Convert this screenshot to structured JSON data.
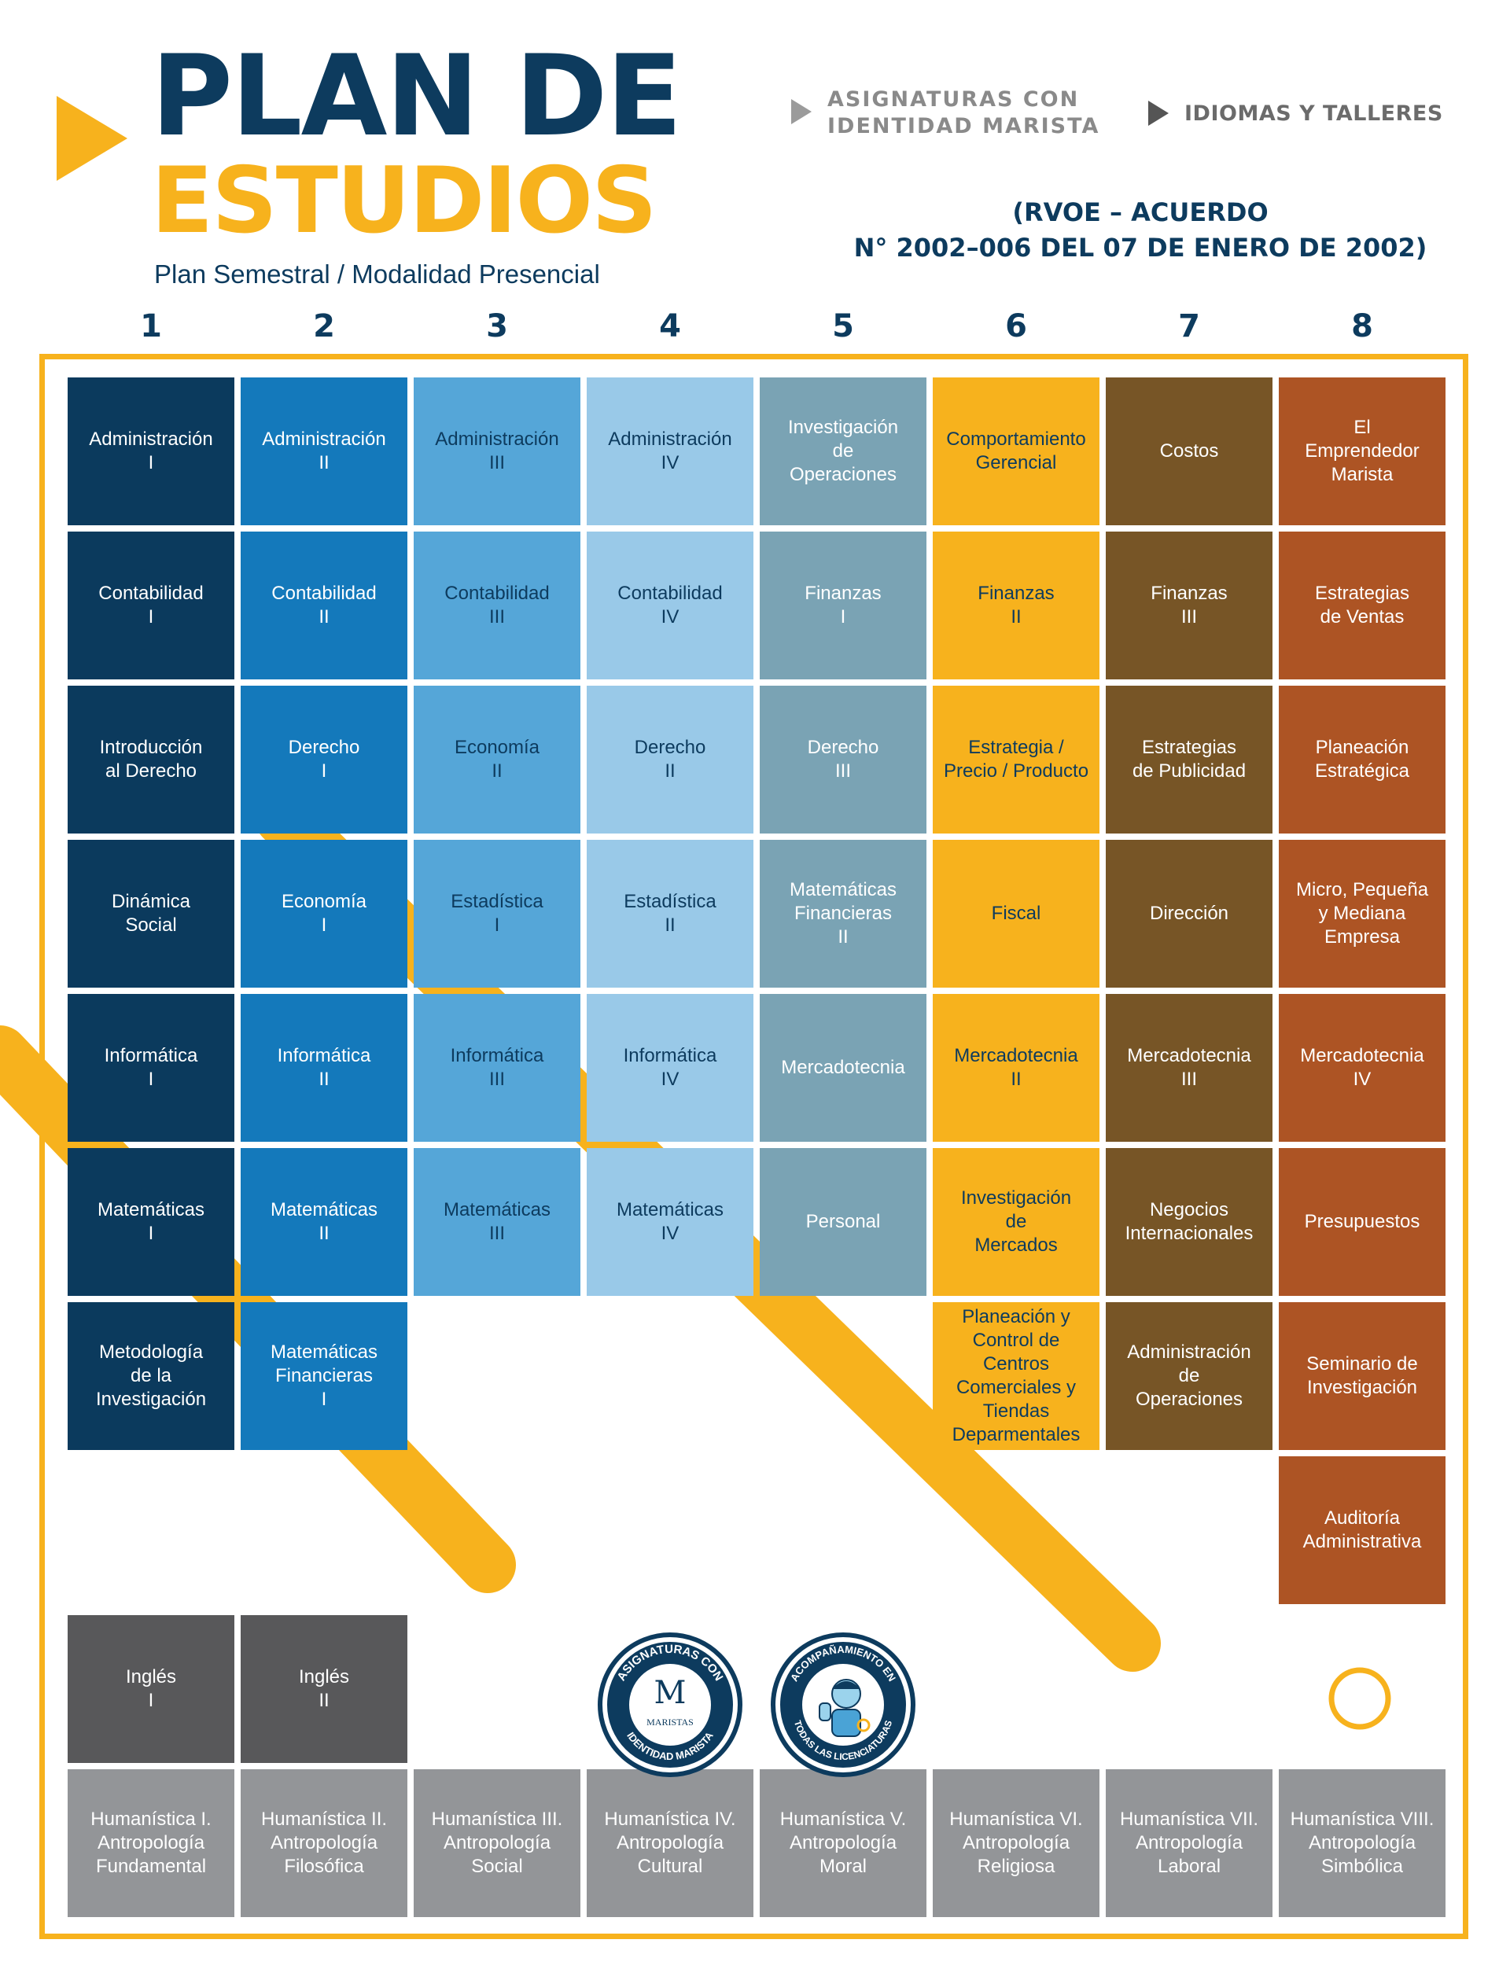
{
  "header": {
    "title_line1": "PLAN DE",
    "title_line2": "ESTUDIOS",
    "subtitle": "Plan Semestral / Modalidad Presencial",
    "rvoe_line1": "(RVOE – ACUERDO",
    "rvoe_line2": "N° 2002–006 DEL 07 DE ENERO DE 2002)"
  },
  "legend": {
    "marista": "ASIGNATURAS CON IDENTIDAD MARISTA",
    "idiomas": "IDIOMAS Y TALLERES"
  },
  "semesters": [
    "1",
    "2",
    "3",
    "4",
    "5",
    "6",
    "7",
    "8"
  ],
  "columns": [
    {
      "color": "#0b3a5d",
      "text": "#ffffff",
      "subjects": [
        "Administración\nI",
        "Contabilidad\nI",
        "Introducción\nal Derecho",
        "Dinámica\nSocial",
        "Informática\nI",
        "Matemáticas\nI",
        "Metodología\nde la\nInvestigación"
      ]
    },
    {
      "color": "#1479bb",
      "text": "#ffffff",
      "subjects": [
        "Administración\nII",
        "Contabilidad\nII",
        "Derecho\nI",
        "Economía\nI",
        "Informática\nII",
        "Matemáticas\nII",
        "Matemáticas\nFinancieras\nI"
      ]
    },
    {
      "color": "#55a6d8",
      "text": "#0d3b5e",
      "subjects": [
        "Administración\nIII",
        "Contabilidad\nIII",
        "Economía\nII",
        "Estadística\nI",
        "Informática\nIII",
        "Matemáticas\nIII"
      ]
    },
    {
      "color": "#99c9e8",
      "text": "#0d3b5e",
      "subjects": [
        "Administración\nIV",
        "Contabilidad\nIV",
        "Derecho\nII",
        "Estadística\nII",
        "Informática\nIV",
        "Matemáticas\nIV"
      ]
    },
    {
      "color": "#7aa3b4",
      "text": "#ffffff",
      "subjects": [
        "Investigación\nde\nOperaciones",
        "Finanzas\nI",
        "Derecho\nIII",
        "Matemáticas\nFinancieras\nII",
        "Mercadotecnia",
        "Personal"
      ]
    },
    {
      "color": "#f7b21d",
      "text": "#0d3b5e",
      "subjects": [
        "Comportamiento\nGerencial",
        "Finanzas\nII",
        "Estrategia /\nPrecio / Producto",
        "Fiscal",
        "Mercadotecnia\nII",
        "Investigación\nde\nMercados",
        "Planeación y\nControl de\nCentros\nComerciales y\nTiendas\nDeparmentales"
      ]
    },
    {
      "color": "#775526",
      "text": "#ffffff",
      "subjects": [
        "Costos",
        "Finanzas\nIII",
        "Estrategias\nde Publicidad",
        "Dirección",
        "Mercadotecnia\nIII",
        "Negocios\nInternacionales",
        "Administración\nde\nOperaciones"
      ]
    },
    {
      "color": "#ad5424",
      "text": "#ffffff",
      "subjects": [
        "El\nEmprendedor\nMarista",
        "Estrategias\nde Ventas",
        "Planeación\nEstratégica",
        "Micro, Pequeña\ny Mediana\nEmpresa",
        "Mercadotecnia\nIV",
        "Presupuestos",
        "Seminario de\nInvestigación",
        "Auditoría\nAdministrativa"
      ]
    }
  ],
  "languages": {
    "color": "#58585a",
    "subjects": [
      "Inglés\nI",
      "Inglés\nII"
    ]
  },
  "humanistica": {
    "color": "#939598",
    "subjects": [
      "Humanística I.\nAntropología\nFundamental",
      "Humanística II.\nAntropología\nFilosófica",
      "Humanística III.\nAntropología\nSocial",
      "Humanística IV.\nAntropología\nCultural",
      "Humanística V.\nAntropología\nMoral",
      "Humanística VI.\nAntropología\nReligiosa",
      "Humanística VII.\nAntropología\nLaboral",
      "Humanística VIII.\nAntropología\nSimbólica"
    ]
  },
  "badges": {
    "marista_top": "ASIGNATURAS CON",
    "marista_bottom": "IDENTIDAD MARISTA",
    "marista_logo": "MARISTAS",
    "acomp_top": "ACOMPAÑAMIENTO EN",
    "acomp_bottom": "TODAS LAS LICENCIATURAS"
  },
  "colors": {
    "navy": "#0d3b5e",
    "yellow": "#f7b21d"
  }
}
